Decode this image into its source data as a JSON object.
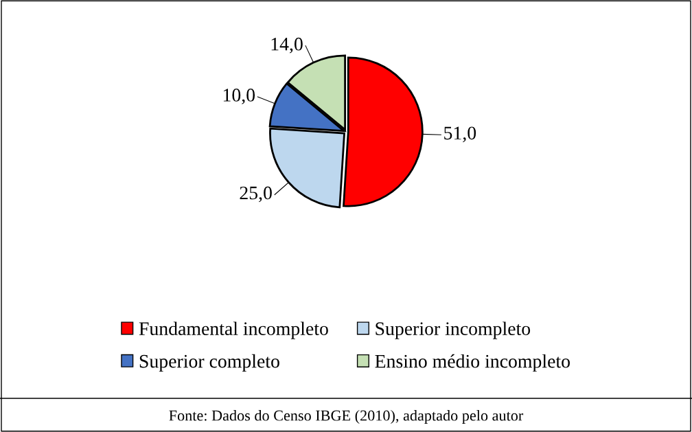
{
  "chart_data": {
    "type": "pie",
    "categories": [
      "Fundamental incompleto",
      "Superior incompleto",
      "Superior completo",
      "Ensino médio incompleto"
    ],
    "values": [
      51.0,
      25.0,
      10.0,
      14.0
    ],
    "value_labels": [
      "51,0",
      "25,0",
      "10,0",
      "14,0"
    ],
    "colors": [
      "#ff0000",
      "#bdd7ee",
      "#4472c4",
      "#c5e0b4"
    ],
    "legend": "bottom",
    "annotations": [
      "Fonte: Dados do Censo IBGE (2010), adaptado pelo autor"
    ]
  }
}
